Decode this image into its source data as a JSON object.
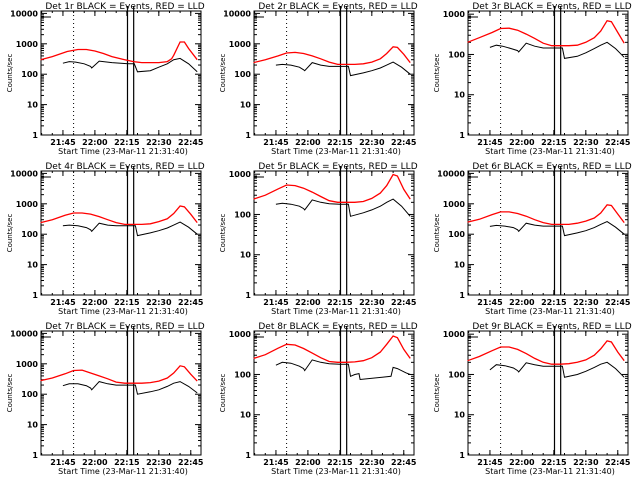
{
  "chart_data": [
    {
      "type": "line",
      "title": "Det 1r BLACK = Events, RED = LLD",
      "xlabel": "Start Time (23-Mar-11 21:31:40)",
      "ylabel": "Counts/sec",
      "yscale": "log",
      "ylim": [
        1,
        12000
      ],
      "xlim_minutes_after_2130": [
        4.5,
        79.8
      ],
      "xticks": [
        "21:45",
        "22:00",
        "22:15",
        "22:30",
        "22:45"
      ],
      "yticks": [
        "1",
        "10",
        "100",
        "1000",
        "10000"
      ],
      "markers": {
        "dotted_line": "21:50",
        "vertical_lines": [
          "22:15",
          "22:18"
        ]
      },
      "series": [
        {
          "name": "LLD",
          "color": "#ff0000",
          "x": [
            4.5,
            10,
            17,
            22,
            26,
            30,
            34,
            38,
            44,
            48,
            52,
            56,
            60,
            64,
            66,
            67,
            70,
            72,
            74,
            78
          ],
          "values": [
            300,
            380,
            560,
            650,
            650,
            580,
            480,
            380,
            300,
            260,
            240,
            240,
            240,
            260,
            320,
            420,
            1150,
            1150,
            700,
            300
          ]
        },
        {
          "name": "Events",
          "color": "#000000",
          "x": [
            15,
            18,
            21,
            25,
            28,
            28.5,
            32,
            38,
            46,
            48,
            48.5,
            50,
            56,
            60,
            64,
            67,
            70,
            74,
            78
          ],
          "values": [
            230,
            260,
            250,
            220,
            180,
            160,
            270,
            240,
            220,
            220,
            220,
            120,
            130,
            170,
            220,
            300,
            330,
            220,
            120
          ]
        }
      ]
    },
    {
      "type": "line",
      "title": "Det 2r BLACK = Events, RED = LLD",
      "xlabel": "Start Time (23-Mar-11 21:31:40)",
      "ylabel": "Counts/sec",
      "yscale": "log",
      "ylim": [
        1,
        12000
      ],
      "xticks": [
        "21:45",
        "22:00",
        "22:15",
        "22:30",
        "22:45"
      ],
      "yticks": [
        "1",
        "10",
        "100",
        "1000",
        "10000"
      ],
      "series": [
        {
          "name": "LLD",
          "color": "#ff0000",
          "x": [
            4.5,
            10,
            16,
            20,
            24,
            28,
            32,
            36,
            40,
            44,
            48,
            52,
            56,
            60,
            64,
            67,
            70,
            72,
            75,
            78
          ],
          "values": [
            240,
            300,
            400,
            500,
            520,
            480,
            400,
            320,
            250,
            210,
            210,
            210,
            220,
            250,
            320,
            480,
            800,
            760,
            450,
            240
          ]
        },
        {
          "name": "Events",
          "color": "#000000",
          "x": [
            15,
            18,
            22,
            26,
            28,
            28.5,
            32,
            36,
            40,
            45,
            48,
            49,
            50,
            56,
            60,
            64,
            67,
            70,
            74,
            78
          ],
          "values": [
            200,
            210,
            200,
            170,
            140,
            130,
            240,
            200,
            180,
            180,
            180,
            180,
            90,
            110,
            130,
            160,
            200,
            250,
            170,
            100
          ]
        }
      ]
    },
    {
      "type": "line",
      "title": "Det 3r BLACK = Events, RED = LLD",
      "xlabel": "Start Time (23-Mar-11 21:31:40)",
      "ylabel": "Counts/sec",
      "yscale": "log",
      "ylim": [
        1,
        1200
      ],
      "xticks": [
        "21:45",
        "22:00",
        "22:15",
        "22:30",
        "22:45"
      ],
      "yticks": [
        "1",
        "10",
        "100",
        "1000"
      ],
      "series": [
        {
          "name": "LLD",
          "color": "#ff0000",
          "x": [
            4.5,
            10,
            16,
            20,
            24,
            28,
            32,
            36,
            40,
            44,
            48,
            52,
            56,
            60,
            64,
            67,
            70,
            72,
            75,
            78
          ],
          "values": [
            200,
            260,
            350,
            440,
            450,
            400,
            320,
            250,
            190,
            165,
            165,
            165,
            170,
            200,
            260,
            380,
            690,
            650,
            350,
            190
          ]
        },
        {
          "name": "Events",
          "color": "#000000",
          "x": [
            15,
            18,
            21,
            25,
            28,
            28.5,
            32,
            36,
            40,
            45,
            48,
            49,
            50,
            56,
            60,
            64,
            67,
            70,
            74,
            78
          ],
          "values": [
            150,
            170,
            160,
            140,
            125,
            115,
            190,
            160,
            145,
            145,
            145,
            145,
            80,
            90,
            110,
            140,
            170,
            200,
            140,
            85
          ]
        }
      ]
    },
    {
      "type": "line",
      "title": "Det 4r BLACK = Events, RED = LLD",
      "xlabel": "Start Time (23-Mar-11 21:31:40)",
      "ylabel": "Counts/sec",
      "yscale": "log",
      "ylim": [
        1,
        12000
      ],
      "xticks": [
        "21:45",
        "22:00",
        "22:15",
        "22:30",
        "22:45"
      ],
      "yticks": [
        "1",
        "10",
        "100",
        "1000",
        "10000"
      ],
      "series": [
        {
          "name": "LLD",
          "color": "#ff0000",
          "x": [
            4.5,
            10,
            16,
            20,
            24,
            28,
            32,
            36,
            40,
            44,
            48,
            52,
            56,
            60,
            64,
            67,
            70,
            72,
            75,
            78
          ],
          "values": [
            240,
            300,
            420,
            500,
            500,
            460,
            380,
            300,
            240,
            210,
            210,
            210,
            220,
            260,
            320,
            480,
            850,
            800,
            450,
            240
          ]
        },
        {
          "name": "Events",
          "color": "#000000",
          "x": [
            15,
            18,
            22,
            26,
            28,
            28.5,
            32,
            36,
            40,
            45,
            48,
            49,
            50,
            56,
            60,
            64,
            67,
            70,
            74,
            78
          ],
          "values": [
            190,
            200,
            190,
            165,
            140,
            125,
            230,
            200,
            190,
            190,
            190,
            190,
            90,
            110,
            130,
            160,
            200,
            250,
            170,
            100
          ]
        }
      ]
    },
    {
      "type": "line",
      "title": "Det 5r BLACK = Events, RED = LLD",
      "xlabel": "Start Time (23-Mar-11 21:31:40)",
      "ylabel": "Counts/sec",
      "yscale": "log",
      "ylim": [
        1,
        1200
      ],
      "xticks": [
        "21:45",
        "22:00",
        "22:15",
        "22:30",
        "22:45"
      ],
      "yticks": [
        "1",
        "10",
        "100",
        "1000"
      ],
      "series": [
        {
          "name": "LLD",
          "color": "#ff0000",
          "x": [
            4.5,
            10,
            16,
            20,
            24,
            28,
            32,
            36,
            40,
            44,
            48,
            52,
            56,
            60,
            64,
            67,
            70,
            72,
            75,
            78
          ],
          "values": [
            240,
            300,
            430,
            540,
            520,
            450,
            360,
            280,
            220,
            200,
            200,
            200,
            210,
            250,
            340,
            520,
            980,
            900,
            420,
            240
          ]
        },
        {
          "name": "Events",
          "color": "#000000",
          "x": [
            15,
            18,
            22,
            26,
            28,
            28.5,
            32,
            36,
            40,
            45,
            48,
            49,
            50,
            56,
            60,
            64,
            67,
            70,
            74,
            78
          ],
          "values": [
            180,
            190,
            180,
            160,
            140,
            130,
            230,
            200,
            185,
            180,
            180,
            180,
            90,
            110,
            130,
            160,
            200,
            240,
            160,
            90
          ]
        }
      ]
    },
    {
      "type": "line",
      "title": "Det 6r BLACK = Events, RED = LLD",
      "xlabel": "Start Time (23-Mar-11 21:31:40)",
      "ylabel": "Counts/sec",
      "yscale": "log",
      "ylim": [
        1,
        12000
      ],
      "xticks": [
        "21:45",
        "22:00",
        "22:15",
        "22:30",
        "22:45"
      ],
      "yticks": [
        "1",
        "10",
        "100",
        "1000",
        "10000"
      ],
      "series": [
        {
          "name": "LLD",
          "color": "#ff0000",
          "x": [
            4.5,
            10,
            16,
            20,
            24,
            28,
            32,
            36,
            40,
            44,
            48,
            52,
            56,
            60,
            64,
            67,
            70,
            72,
            75,
            78
          ],
          "values": [
            250,
            310,
            440,
            540,
            540,
            480,
            390,
            300,
            240,
            210,
            210,
            210,
            230,
            270,
            340,
            500,
            930,
            880,
            460,
            240
          ]
        },
        {
          "name": "Events",
          "color": "#000000",
          "x": [
            15,
            18,
            22,
            26,
            28,
            28.5,
            32,
            36,
            40,
            45,
            48,
            49,
            50,
            56,
            60,
            64,
            67,
            70,
            74,
            78
          ],
          "values": [
            180,
            195,
            185,
            165,
            140,
            125,
            230,
            200,
            185,
            185,
            185,
            185,
            90,
            110,
            130,
            165,
            210,
            260,
            170,
            100
          ]
        }
      ]
    },
    {
      "type": "line",
      "title": "Det 7r BLACK = Events, RED = LLD",
      "xlabel": "Start Time (23-Mar-11 21:31:40)",
      "ylabel": "Counts/sec",
      "yscale": "log",
      "ylim": [
        1,
        12000
      ],
      "xticks": [
        "21:45",
        "22:00",
        "22:15",
        "22:30",
        "22:45"
      ],
      "yticks": [
        "1",
        "10",
        "100",
        "1000",
        "10000"
      ],
      "series": [
        {
          "name": "LLD",
          "color": "#ff0000",
          "x": [
            4.5,
            10,
            16,
            20,
            24,
            28,
            32,
            36,
            40,
            44,
            48,
            52,
            56,
            60,
            64,
            67,
            70,
            72,
            75,
            78
          ],
          "values": [
            280,
            340,
            470,
            600,
            620,
            500,
            400,
            320,
            250,
            230,
            230,
            230,
            240,
            270,
            340,
            500,
            860,
            800,
            450,
            270
          ]
        },
        {
          "name": "Events",
          "color": "#000000",
          "x": [
            15,
            18,
            22,
            26,
            28,
            28.5,
            32,
            36,
            40,
            45,
            48,
            49,
            50,
            56,
            60,
            64,
            67,
            70,
            74,
            78
          ],
          "values": [
            190,
            220,
            220,
            190,
            160,
            140,
            260,
            220,
            200,
            200,
            200,
            200,
            100,
            120,
            140,
            180,
            230,
            260,
            180,
            110
          ]
        }
      ]
    },
    {
      "type": "line",
      "title": "Det 8r BLACK = Events, RED = LLD",
      "xlabel": "Start Time (23-Mar-11 21:31:40)",
      "ylabel": "Counts/sec",
      "yscale": "log",
      "ylim": [
        1,
        1200
      ],
      "xticks": [
        "21:45",
        "22:00",
        "22:15",
        "22:30",
        "22:45"
      ],
      "yticks": [
        "1",
        "10",
        "100",
        "1000"
      ],
      "series": [
        {
          "name": "LLD",
          "color": "#ff0000",
          "x": [
            4.5,
            10,
            16,
            20,
            24,
            28,
            32,
            36,
            40,
            44,
            48,
            52,
            56,
            60,
            64,
            67,
            70,
            72,
            75,
            78
          ],
          "values": [
            250,
            310,
            450,
            560,
            540,
            440,
            340,
            260,
            210,
            200,
            200,
            205,
            220,
            260,
            360,
            560,
            900,
            820,
            420,
            250
          ]
        },
        {
          "name": "Events",
          "color": "#000000",
          "x": [
            15,
            18,
            22,
            26,
            28,
            28.5,
            32,
            36,
            40,
            45,
            48,
            49,
            50,
            52,
            54,
            54.5,
            69,
            70,
            72,
            76,
            78
          ],
          "values": [
            170,
            200,
            190,
            160,
            140,
            125,
            230,
            200,
            185,
            180,
            180,
            180,
            90,
            100,
            105,
            75,
            90,
            150,
            140,
            110,
            100
          ]
        }
      ]
    },
    {
      "type": "line",
      "title": "Det 9r BLACK = Events, RED = LLD",
      "xlabel": "Start Time (23-Mar-11 21:31:40)",
      "ylabel": "Counts/sec",
      "yscale": "log",
      "ylim": [
        1,
        1200
      ],
      "xticks": [
        "21:45",
        "22:00",
        "22:15",
        "22:30",
        "22:45"
      ],
      "yticks": [
        "1",
        "10",
        "100",
        "1000"
      ],
      "series": [
        {
          "name": "LLD",
          "color": "#ff0000",
          "x": [
            4.5,
            10,
            16,
            20,
            24,
            28,
            32,
            36,
            40,
            44,
            48,
            52,
            56,
            60,
            64,
            67,
            70,
            72,
            75,
            78
          ],
          "values": [
            220,
            280,
            390,
            480,
            480,
            420,
            330,
            250,
            200,
            180,
            180,
            185,
            200,
            230,
            300,
            430,
            680,
            640,
            360,
            220
          ]
        },
        {
          "name": "Events",
          "color": "#000000",
          "x": [
            15,
            18,
            22,
            26,
            28,
            28.5,
            32,
            36,
            40,
            45,
            48,
            49,
            50,
            56,
            60,
            64,
            67,
            70,
            74,
            78
          ],
          "values": [
            130,
            175,
            165,
            145,
            125,
            115,
            195,
            175,
            160,
            160,
            160,
            160,
            85,
            100,
            120,
            150,
            180,
            200,
            140,
            85
          ]
        }
      ]
    }
  ]
}
